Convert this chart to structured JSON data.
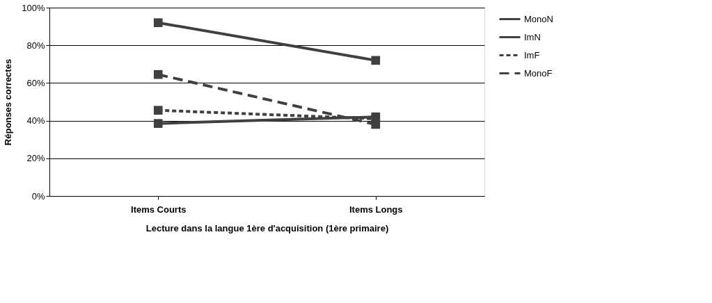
{
  "chart_data": {
    "type": "line",
    "xlabel": "Lecture dans la langue 1ère d'acquisition (1ère primaire)",
    "ylabel": "Réponses correctes",
    "categories": [
      "Items Courts",
      "Items Longs"
    ],
    "series": [
      {
        "name": "MonoN",
        "color": "#404040",
        "values": [
          92,
          72
        ],
        "line_style": "solid"
      },
      {
        "name": "ImN",
        "color": "#404040",
        "values": [
          38.5,
          42
        ],
        "line_style": "solid"
      },
      {
        "name": "ImF",
        "color": "#404040",
        "values": [
          45.5,
          41
        ],
        "line_style": "dotted"
      },
      {
        "name": "MonoF",
        "color": "#404040",
        "values": [
          64.5,
          38
        ],
        "line_style": "dashed"
      }
    ],
    "ylim": [
      0,
      100
    ],
    "yticks": [
      {
        "value": 0,
        "label": "0%"
      },
      {
        "value": 20,
        "label": "20%"
      },
      {
        "value": 40,
        "label": "40%"
      },
      {
        "value": 60,
        "label": "60%"
      },
      {
        "value": 80,
        "label": "80%"
      },
      {
        "value": 100,
        "label": "100%"
      }
    ],
    "grid": "y",
    "legend": "right",
    "marker": "square"
  }
}
